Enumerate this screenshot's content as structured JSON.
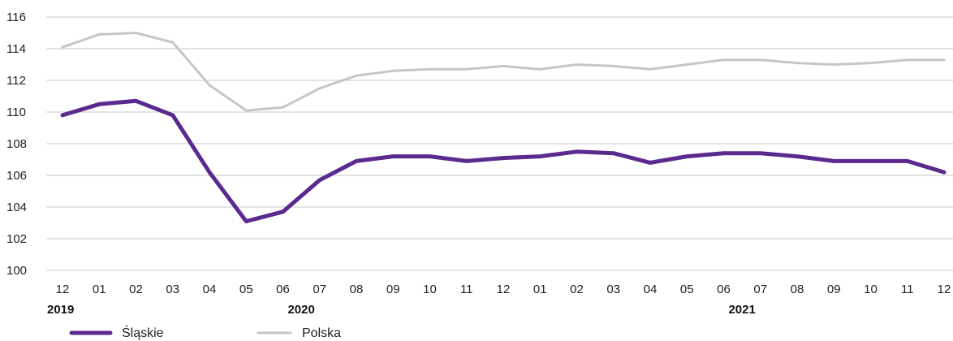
{
  "chart_data": {
    "type": "line",
    "title": "",
    "xlabel": "",
    "ylabel": "",
    "ylim": [
      100,
      116
    ],
    "yticks": [
      100,
      102,
      104,
      106,
      108,
      110,
      112,
      114,
      116
    ],
    "grid": true,
    "legend_position": "bottom-left",
    "categories": [
      "12",
      "01",
      "02",
      "03",
      "04",
      "05",
      "06",
      "07",
      "08",
      "09",
      "10",
      "11",
      "12",
      "01",
      "02",
      "03",
      "04",
      "05",
      "06",
      "07",
      "08",
      "09",
      "10",
      "11",
      "12"
    ],
    "year_labels": [
      {
        "index": 0,
        "label": "2019"
      },
      {
        "index": 6.5,
        "label": "2020"
      },
      {
        "index": 18.5,
        "label": "2021"
      }
    ],
    "series": [
      {
        "name": "Śląskie",
        "color": "#5b2a8e",
        "values": [
          109.8,
          110.5,
          110.7,
          109.8,
          106.2,
          103.1,
          103.7,
          105.7,
          106.9,
          107.2,
          107.2,
          106.9,
          107.1,
          107.2,
          107.5,
          107.4,
          106.8,
          107.2,
          107.4,
          107.4,
          107.2,
          106.9,
          106.9,
          106.9,
          106.2
        ]
      },
      {
        "name": "Polska",
        "color": "#c6c6c6",
        "values": [
          114.1,
          114.9,
          115.0,
          114.4,
          111.7,
          110.1,
          110.3,
          111.5,
          112.3,
          112.6,
          112.7,
          112.7,
          112.9,
          112.7,
          113.0,
          112.9,
          112.7,
          113.0,
          113.3,
          113.3,
          113.1,
          113.0,
          113.1,
          113.3,
          113.3
        ]
      }
    ]
  }
}
